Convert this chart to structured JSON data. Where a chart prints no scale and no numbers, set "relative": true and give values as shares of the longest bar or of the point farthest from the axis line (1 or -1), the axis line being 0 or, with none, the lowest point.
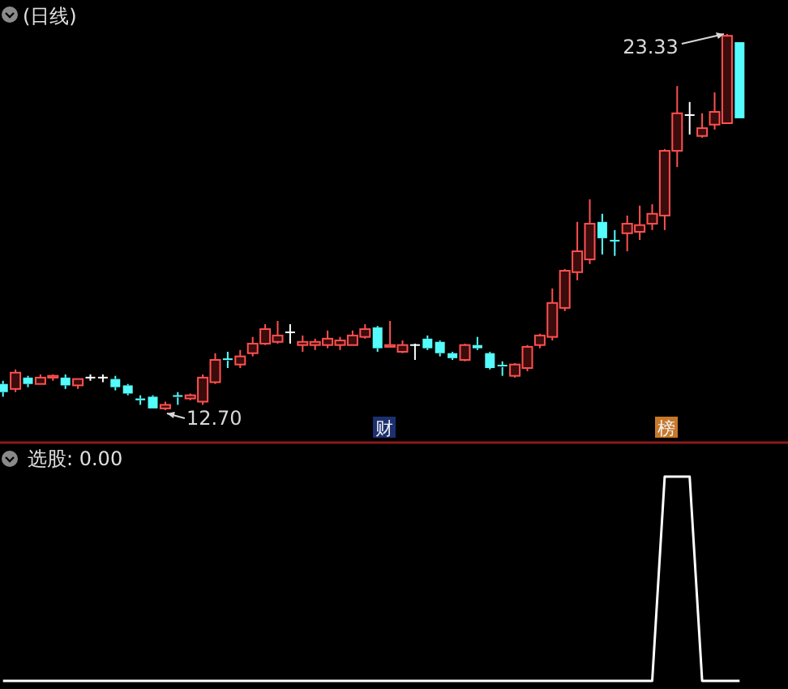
{
  "chart_data": [
    {
      "type": "candlestick",
      "title": "(日线)",
      "categories": [
        null,
        null,
        null,
        null,
        null,
        null,
        null,
        null,
        null,
        null,
        null,
        null,
        null,
        null,
        null,
        null,
        null,
        null,
        null,
        null,
        null,
        null,
        null,
        null,
        null,
        null,
        null,
        null,
        null,
        null,
        null,
        null,
        null,
        null,
        null,
        null,
        null,
        null,
        null,
        null,
        null,
        null,
        null,
        null,
        null,
        null,
        null,
        null,
        null,
        null,
        null,
        null,
        null,
        null,
        null,
        null,
        null,
        null,
        null,
        null
      ],
      "ohlc": [
        [
          13.44,
          13.53,
          13.08,
          13.21
        ],
        [
          13.3,
          13.85,
          13.21,
          13.76
        ],
        [
          13.62,
          13.67,
          13.35,
          13.44
        ],
        [
          13.44,
          13.71,
          13.44,
          13.62
        ],
        [
          13.62,
          13.71,
          13.53,
          13.67
        ],
        [
          13.62,
          13.71,
          13.3,
          13.4
        ],
        [
          13.4,
          13.58,
          13.3,
          13.58
        ],
        [
          13.62,
          13.71,
          13.53,
          13.62
        ],
        [
          13.62,
          13.71,
          13.49,
          13.62
        ],
        [
          13.58,
          13.67,
          13.26,
          13.35
        ],
        [
          13.4,
          13.44,
          13.12,
          13.17
        ],
        [
          13.03,
          13.12,
          12.85,
          12.98
        ],
        [
          13.08,
          13.12,
          12.75,
          12.75
        ],
        [
          12.75,
          12.94,
          12.7,
          12.85
        ],
        [
          13.1,
          13.21,
          12.85,
          13.06
        ],
        [
          13.03,
          13.17,
          12.98,
          13.12
        ],
        [
          12.94,
          13.71,
          12.85,
          13.62
        ],
        [
          13.49,
          14.31,
          13.44,
          14.12
        ],
        [
          14.14,
          14.35,
          13.89,
          14.1
        ],
        [
          13.99,
          14.4,
          13.89,
          14.22
        ],
        [
          14.31,
          14.77,
          14.22,
          14.58
        ],
        [
          14.58,
          15.13,
          14.54,
          14.99
        ],
        [
          14.63,
          15.22,
          14.58,
          14.81
        ],
        [
          14.9,
          15.13,
          14.58,
          14.9
        ],
        [
          14.54,
          14.81,
          14.35,
          14.63
        ],
        [
          14.54,
          14.72,
          14.4,
          14.63
        ],
        [
          14.54,
          14.95,
          14.45,
          14.72
        ],
        [
          14.54,
          14.77,
          14.4,
          14.67
        ],
        [
          14.54,
          14.95,
          14.54,
          14.81
        ],
        [
          14.77,
          15.13,
          14.72,
          14.99
        ],
        [
          15.04,
          15.08,
          14.35,
          14.45
        ],
        [
          14.49,
          15.22,
          14.49,
          14.54
        ],
        [
          14.35,
          14.67,
          14.31,
          14.54
        ],
        [
          14.54,
          14.58,
          14.12,
          14.54
        ],
        [
          14.72,
          14.81,
          14.4,
          14.45
        ],
        [
          14.63,
          14.67,
          14.22,
          14.31
        ],
        [
          14.31,
          14.35,
          14.12,
          14.17
        ],
        [
          14.12,
          14.58,
          14.08,
          14.54
        ],
        [
          14.54,
          14.77,
          14.4,
          14.45
        ],
        [
          14.31,
          14.35,
          13.85,
          13.89
        ],
        [
          13.96,
          14.08,
          13.67,
          13.92
        ],
        [
          13.67,
          14.03,
          13.62,
          13.99
        ],
        [
          13.89,
          14.54,
          13.8,
          14.49
        ],
        [
          14.54,
          14.86,
          14.45,
          14.81
        ],
        [
          14.77,
          16.14,
          14.67,
          15.73
        ],
        [
          15.59,
          16.69,
          15.5,
          16.64
        ],
        [
          16.6,
          18.02,
          16.37,
          17.19
        ],
        [
          16.96,
          18.66,
          16.83,
          17.97
        ],
        [
          18.02,
          18.25,
          17.1,
          17.56
        ],
        [
          17.49,
          17.79,
          17.06,
          17.47
        ],
        [
          17.7,
          18.2,
          17.19,
          17.97
        ],
        [
          17.74,
          18.48,
          17.51,
          17.93
        ],
        [
          17.97,
          18.52,
          17.79,
          18.25
        ],
        [
          18.2,
          20.08,
          17.79,
          20.03
        ],
        [
          20.03,
          21.86,
          19.57,
          21.09
        ],
        [
          21.04,
          21.41,
          20.49,
          21.04
        ],
        [
          20.45,
          21.09,
          20.4,
          20.67
        ],
        [
          20.77,
          21.68,
          20.63,
          21.13
        ],
        [
          20.81,
          23.33,
          20.81,
          23.28
        ],
        [
          23.1,
          23.1,
          20.95,
          20.95
        ]
      ],
      "annotations": [
        "23.33",
        "12.70",
        "财",
        "榜"
      ]
    },
    {
      "type": "line",
      "title": "选股: 0.00",
      "relative": true,
      "color": "#ffffff",
      "categories": [
        null,
        null,
        null,
        null,
        null,
        null,
        null,
        null,
        null,
        null,
        null,
        null,
        null,
        null,
        null,
        null,
        null,
        null,
        null,
        null,
        null,
        null,
        null,
        null,
        null,
        null,
        null,
        null,
        null,
        null,
        null,
        null,
        null,
        null,
        null,
        null,
        null,
        null,
        null,
        null,
        null,
        null,
        null,
        null,
        null,
        null,
        null,
        null,
        null,
        null,
        null,
        null,
        null,
        null,
        null,
        null,
        null,
        null,
        null,
        null
      ],
      "values": [
        0,
        0,
        0,
        0,
        0,
        0,
        0,
        0,
        0,
        0,
        0,
        0,
        0,
        0,
        0,
        0,
        0,
        0,
        0,
        0,
        0,
        0,
        0,
        0,
        0,
        0,
        0,
        0,
        0,
        0,
        0,
        0,
        0,
        0,
        0,
        0,
        0,
        0,
        0,
        0,
        0,
        0,
        0,
        0,
        0,
        0,
        0,
        0,
        0,
        0,
        0,
        0,
        0,
        1,
        1,
        1,
        0,
        0,
        0,
        0
      ]
    }
  ]
}
